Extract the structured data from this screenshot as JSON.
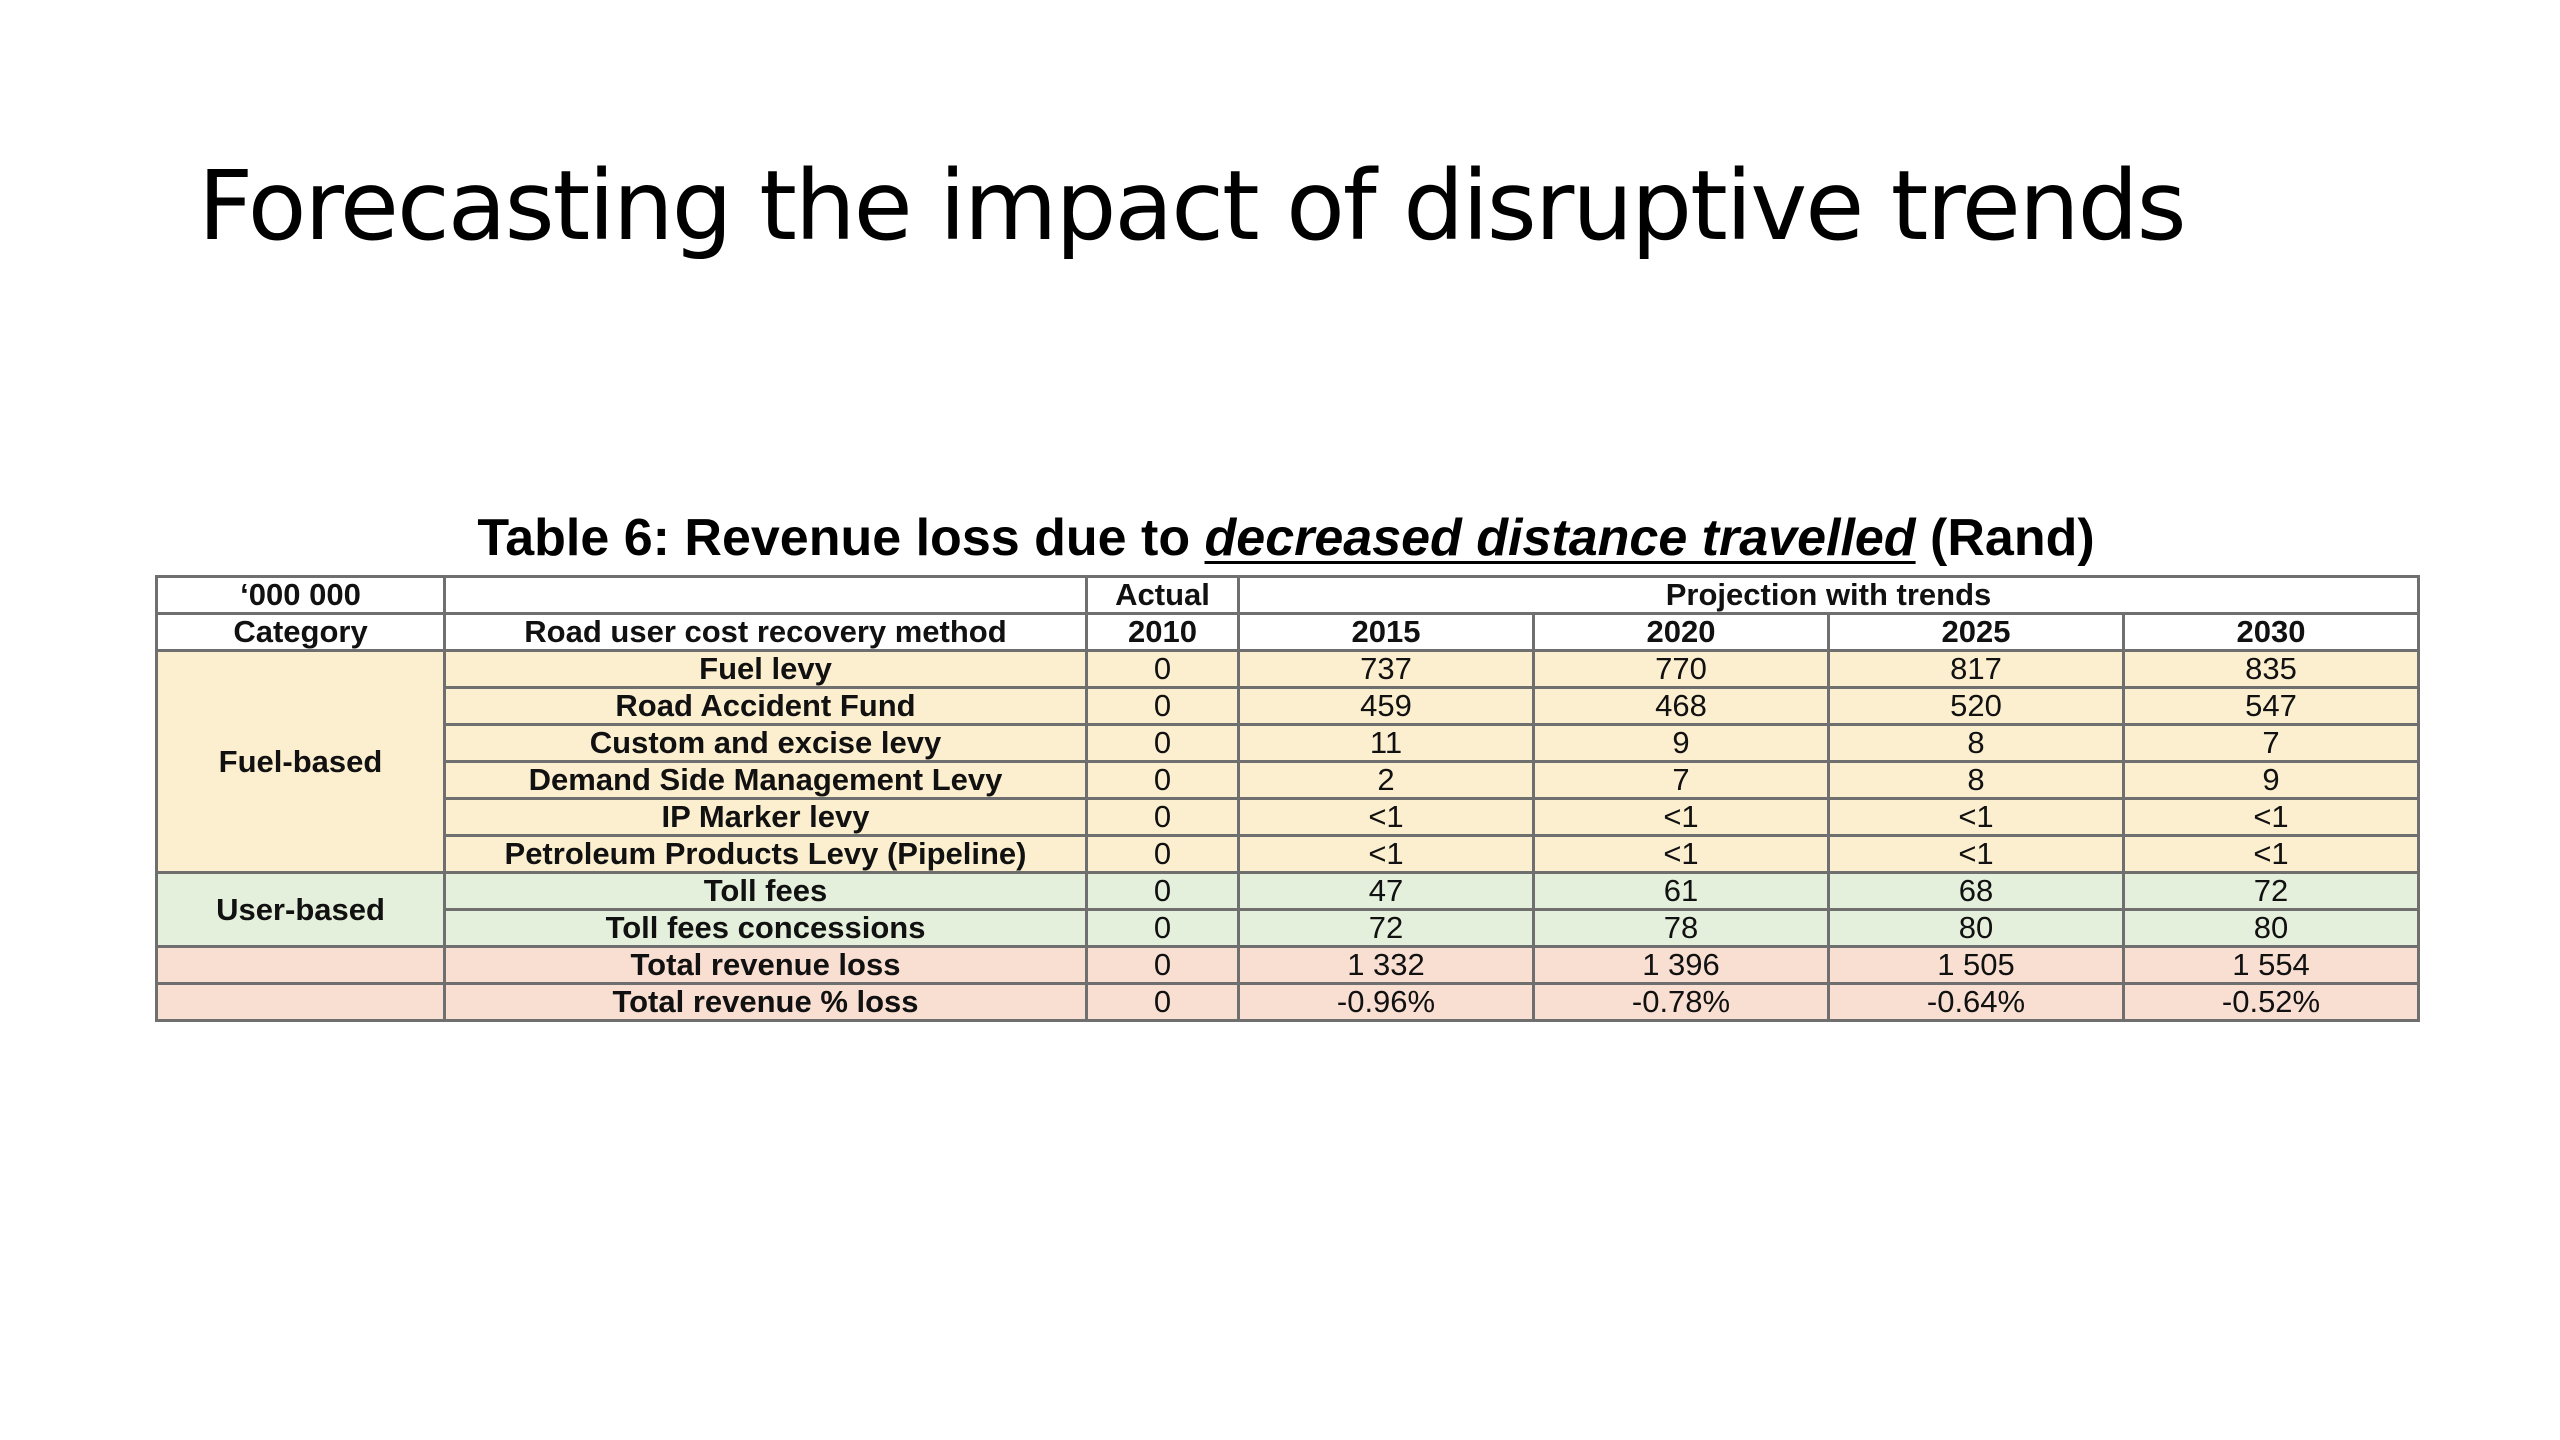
{
  "slide": {
    "title": "Forecasting the impact of disruptive trends"
  },
  "table": {
    "caption_prefix": "Table 6: Revenue loss due to ",
    "caption_emphasis": "decreased distance travelled",
    "caption_suffix": " (Rand)",
    "header_top": {
      "units": "‘000 000",
      "method_blank": "",
      "actual": "Actual",
      "projection": "Projection with trends"
    },
    "header_bottom": {
      "category": "Category",
      "method": "Road user cost recovery method",
      "years": [
        "2010",
        "2015",
        "2020",
        "2025",
        "2030"
      ]
    },
    "groups": {
      "fuel": "Fuel-based",
      "user": "User-based"
    },
    "rows": [
      {
        "method": "Fuel levy",
        "values": [
          "0",
          "737",
          "770",
          "817",
          "835"
        ]
      },
      {
        "method": "Road Accident Fund",
        "values": [
          "0",
          "459",
          "468",
          "520",
          "547"
        ]
      },
      {
        "method": "Custom and excise levy",
        "values": [
          "0",
          "11",
          "9",
          "8",
          "7"
        ]
      },
      {
        "method": "Demand Side Management Levy",
        "values": [
          "0",
          "2",
          "7",
          "8",
          "9"
        ]
      },
      {
        "method": "IP Marker levy",
        "values": [
          "0",
          "<1",
          "<1",
          "<1",
          "<1"
        ]
      },
      {
        "method": "Petroleum Products Levy (Pipeline)",
        "values": [
          "0",
          "<1",
          "<1",
          "<1",
          "<1"
        ]
      },
      {
        "method": "Toll fees",
        "values": [
          "0",
          "47",
          "61",
          "68",
          "72"
        ]
      },
      {
        "method": "Toll fees concessions",
        "values": [
          "0",
          "72",
          "78",
          "80",
          "80"
        ]
      },
      {
        "method": "Total revenue loss",
        "values": [
          "0",
          "1 332",
          "1 396",
          "1 505",
          "1 554"
        ]
      },
      {
        "method": "Total revenue % loss",
        "values": [
          "0",
          "-0.96%",
          "-0.78%",
          "-0.64%",
          "-0.52%"
        ]
      }
    ],
    "colors": {
      "fuel_bg": "#fcefcf",
      "user_bg": "#e5f0dc",
      "total_bg": "#f8dfd2",
      "border": "#6f6f6f"
    }
  }
}
